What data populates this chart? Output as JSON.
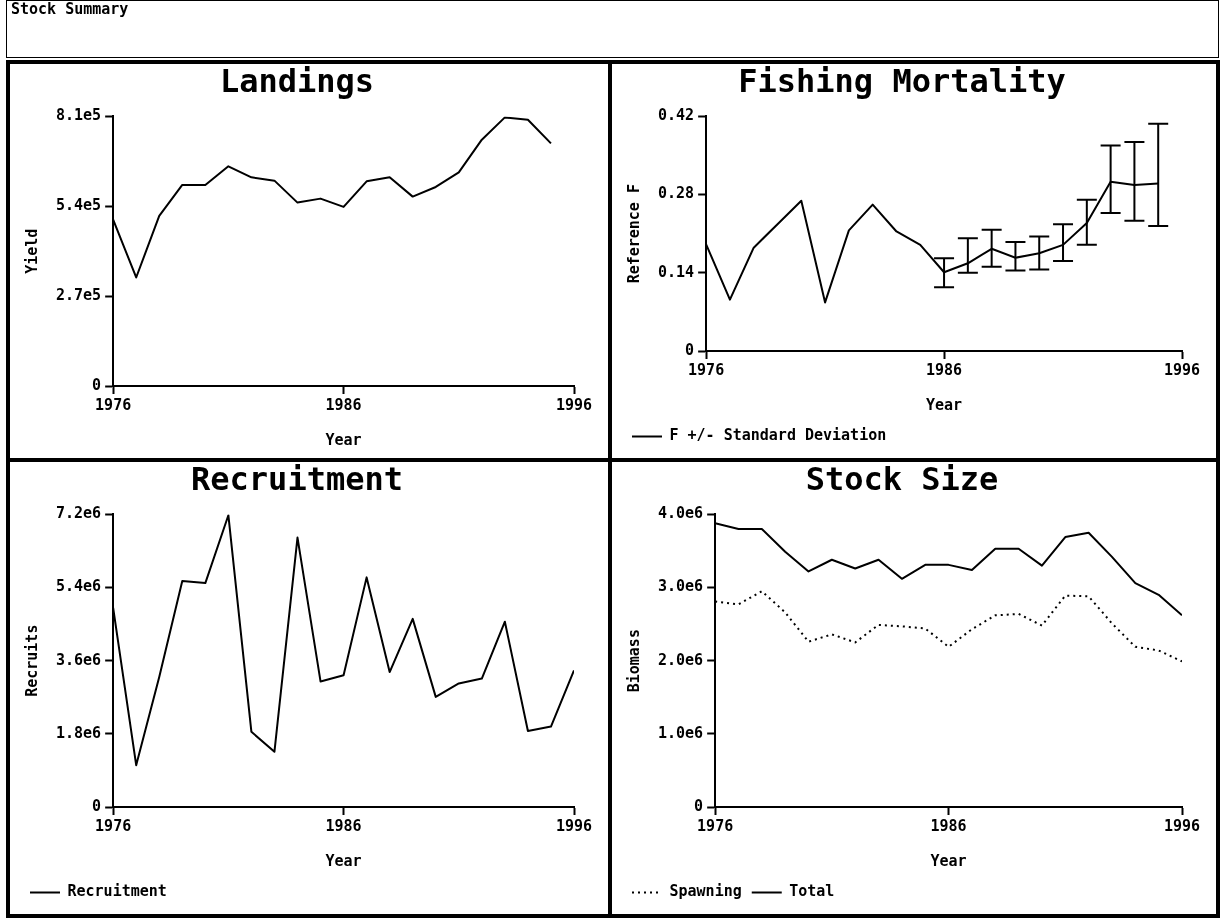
{
  "chart_data": [
    {
      "type": "line",
      "title": "Landings",
      "xlabel": "Year",
      "ylabel": "Yield",
      "annotations": [
        "Stock Summary"
      ],
      "x": [
        1976,
        1977,
        1978,
        1979,
        1980,
        1981,
        1982,
        1983,
        1984,
        1985,
        1986,
        1987,
        1988,
        1989,
        1990,
        1991,
        1992,
        1993,
        1994,
        1995
      ],
      "series": [
        {
          "color": "#000000",
          "values": [
            500000,
            326000,
            511000,
            604000,
            604000,
            660000,
            627000,
            617000,
            551000,
            563000,
            538000,
            615000,
            627000,
            569000,
            598000,
            642000,
            740000,
            807000,
            800000,
            729000
          ]
        }
      ],
      "xlim": [
        1976,
        1996
      ],
      "xticks": [
        1976,
        1986,
        1996
      ],
      "ylim": [
        0,
        810000
      ],
      "yticks": [
        0,
        {
          "value": 270000,
          "label": "2.7e5"
        },
        {
          "value": 540000,
          "label": "5.4e5"
        },
        {
          "value": 810000,
          "label": "8.1e5"
        }
      ]
    },
    {
      "type": "line",
      "title": "Fishing Mortality",
      "xlabel": "Year",
      "ylabel": "Reference F",
      "legend": "bottom left",
      "x": [
        1976,
        1977,
        1978,
        1979,
        1980,
        1981,
        1982,
        1983,
        1984,
        1985,
        1986,
        1987,
        1988,
        1989,
        1990,
        1991,
        1992,
        1993,
        1994,
        1995
      ],
      "series": [
        {
          "name": "F +/- Standard Deviation",
          "color": "#000000",
          "values": [
            0.191,
            0.092,
            0.185,
            0.227,
            0.269,
            0.087,
            0.216,
            0.262,
            0.214,
            0.19,
            0.141,
            0.157,
            0.183,
            0.167,
            0.175,
            0.19,
            0.229,
            0.303,
            0.297,
            0.3
          ],
          "errors": [
            null,
            null,
            null,
            null,
            null,
            null,
            null,
            null,
            null,
            null,
            [
              0.114,
              0.166
            ],
            [
              0.14,
              0.202
            ],
            [
              0.151,
              0.217
            ],
            [
              0.144,
              0.195
            ],
            [
              0.146,
              0.205
            ],
            [
              0.161,
              0.227
            ],
            [
              0.19,
              0.271
            ],
            [
              0.247,
              0.368
            ],
            [
              0.233,
              0.374
            ],
            [
              0.224,
              0.407
            ]
          ]
        }
      ],
      "xlim": [
        1976,
        1996
      ],
      "xticks": [
        1976,
        1986,
        1996
      ],
      "ylim": [
        0,
        0.42
      ],
      "yticks": [
        0,
        0.14,
        0.28,
        0.42
      ]
    },
    {
      "type": "line",
      "title": "Recruitment",
      "xlabel": "Year",
      "ylabel": "Recruits",
      "legend": "bottom left",
      "x": [
        1976,
        1977,
        1978,
        1979,
        1980,
        1981,
        1982,
        1983,
        1984,
        1985,
        1986,
        1987,
        1988,
        1989,
        1990,
        1991,
        1992,
        1993,
        1994,
        1995,
        1996
      ],
      "series": [
        {
          "name": "Recruitment",
          "color": "#000000",
          "values": [
            4900000,
            1030000,
            3200000,
            5560000,
            5510000,
            7180000,
            1850000,
            1360000,
            6630000,
            3090000,
            3240000,
            5650000,
            3320000,
            4630000,
            2710000,
            3040000,
            3160000,
            4560000,
            1870000,
            1980000,
            3360000
          ]
        }
      ],
      "xlim": [
        1976,
        1996
      ],
      "xticks": [
        1976,
        1986,
        1996
      ],
      "ylim": [
        0,
        7200000
      ],
      "yticks": [
        0,
        {
          "value": 1800000,
          "label": "1.8e6"
        },
        {
          "value": 3600000,
          "label": "3.6e6"
        },
        {
          "value": 5400000,
          "label": "5.4e6"
        },
        {
          "value": 7200000,
          "label": "7.2e6"
        }
      ]
    },
    {
      "type": "line",
      "title": "Stock Size",
      "xlabel": "Year",
      "ylabel": "Biomass",
      "legend": "bottom left",
      "x": [
        1976,
        1977,
        1978,
        1979,
        1980,
        1981,
        1982,
        1983,
        1984,
        1985,
        1986,
        1987,
        1988,
        1989,
        1990,
        1991,
        1992,
        1993,
        1994,
        1995,
        1996
      ],
      "series": [
        {
          "name": "Spawning",
          "color": "#000000",
          "line_style": "dotted",
          "values": [
            2810000,
            2770000,
            2950000,
            2660000,
            2260000,
            2360000,
            2250000,
            2490000,
            2470000,
            2440000,
            2190000,
            2430000,
            2620000,
            2640000,
            2480000,
            2890000,
            2880000,
            2510000,
            2190000,
            2140000,
            1990000
          ]
        },
        {
          "name": "Total",
          "color": "#000000",
          "line_style": "solid",
          "values": [
            3880000,
            3800000,
            3800000,
            3490000,
            3220000,
            3380000,
            3260000,
            3380000,
            3120000,
            3310000,
            3310000,
            3240000,
            3530000,
            3530000,
            3300000,
            3690000,
            3750000,
            3420000,
            3060000,
            2900000,
            2620000
          ]
        }
      ],
      "xlim": [
        1976,
        1996
      ],
      "xticks": [
        1976,
        1986,
        1996
      ],
      "ylim": [
        0,
        4000000
      ],
      "yticks": [
        0,
        {
          "value": 1000000,
          "label": "1.0e6"
        },
        {
          "value": 2000000,
          "label": "2.0e6"
        },
        {
          "value": 3000000,
          "label": "3.0e6"
        },
        {
          "value": 4000000,
          "label": "4.0e6"
        }
      ]
    }
  ]
}
